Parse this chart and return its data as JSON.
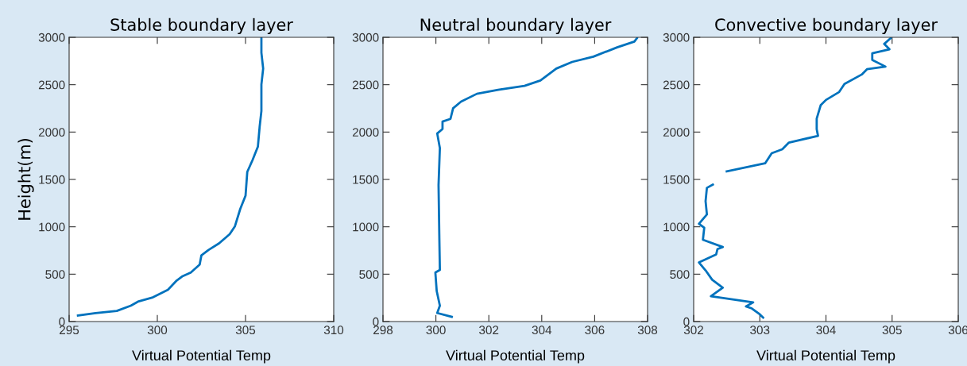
{
  "chart_data": [
    {
      "type": "line",
      "title": "Stable boundary layer",
      "xlabel": "Virtual Potential Temp",
      "ylabel": "Height(m)",
      "xlim": [
        295,
        310
      ],
      "xticks": [
        295,
        300,
        305,
        310
      ],
      "ylim": [
        0,
        3000
      ],
      "yticks": [
        0,
        500,
        1000,
        1500,
        2000,
        2500,
        3000
      ],
      "grid": false,
      "legend": false,
      "series": [
        {
          "color": "#0072bd",
          "x": [
            295.5,
            296.5,
            297.7,
            298.5,
            298.9,
            299.7,
            300.6,
            301.1,
            301.4,
            301.9,
            302.4,
            302.5,
            302.9,
            303.5,
            304.1,
            304.4,
            304.7,
            305.0,
            305.1,
            305.4,
            305.7,
            305.8,
            305.9,
            305.9,
            306.0,
            305.9,
            305.9
          ],
          "values": [
            64,
            90,
            112,
            168,
            210,
            252,
            335,
            433,
            475,
            517,
            601,
            699,
            755,
            825,
            922,
            1006,
            1188,
            1328,
            1580,
            1705,
            1845,
            2055,
            2222,
            2502,
            2670,
            2838,
            2992
          ]
        }
      ]
    },
    {
      "type": "line",
      "title": "Neutral boundary layer",
      "xlabel": "Virtual Potential Temp",
      "xlim": [
        298,
        308
      ],
      "xticks": [
        298,
        300,
        302,
        304,
        306,
        308
      ],
      "ylim": [
        0,
        3000
      ],
      "yticks": [
        0,
        500,
        1000,
        1500,
        2000,
        2500,
        3000
      ],
      "grid": false,
      "legend": false,
      "series": [
        {
          "color": "#0072bd",
          "x": [
            300.6,
            300.05,
            300.15,
            300.03,
            299.98,
            300.15,
            300.13,
            300.1,
            300.15,
            300.05,
            300.25,
            300.25,
            300.55,
            300.65,
            300.95,
            301.55,
            302.35,
            303.35,
            303.95,
            304.55,
            305.15,
            305.95,
            306.85,
            307.5,
            307.6
          ],
          "values": [
            50,
            90,
            168,
            322,
            517,
            545,
            881,
            1440,
            1831,
            1985,
            2032,
            2111,
            2139,
            2251,
            2321,
            2404,
            2446,
            2488,
            2544,
            2670,
            2740,
            2796,
            2894,
            2955,
            2992
          ]
        }
      ]
    },
    {
      "type": "line",
      "title": "Convective boundary layer",
      "xlabel": "Virtual Potential Temp",
      "xlim": [
        302,
        306
      ],
      "xticks": [
        302,
        303,
        304,
        305,
        306
      ],
      "ylim": [
        0,
        3000
      ],
      "yticks": [
        0,
        500,
        1000,
        1500,
        2000,
        2500,
        3000
      ],
      "grid": false,
      "legend": false,
      "series": [
        {
          "color": "#0072bd",
          "x": [
            303.05,
            303.0,
            302.88,
            302.79,
            302.9,
            302.26,
            302.44,
            302.28,
            302.18,
            302.08,
            302.34,
            302.36,
            302.44,
            302.14,
            302.16,
            302.08,
            302.2,
            302.18,
            302.2,
            302.29,
            null,
            302.5,
            303.08,
            303.18,
            303.34,
            303.44,
            303.88,
            303.86,
            303.86,
            303.92,
            304.0,
            304.2,
            304.28,
            304.54,
            304.62,
            304.9,
            304.7,
            304.7,
            304.96,
            304.88,
            304.98
          ],
          "values": [
            42,
            76,
            138,
            160,
            202,
            267,
            357,
            441,
            540,
            624,
            708,
            765,
            787,
            863,
            990,
            1032,
            1130,
            1271,
            1411,
            1445,
            null,
            1586,
            1670,
            1777,
            1819,
            1889,
            1960,
            2030,
            2142,
            2283,
            2339,
            2423,
            2508,
            2607,
            2663,
            2691,
            2762,
            2832,
            2874,
            2930,
            2992
          ]
        }
      ]
    }
  ]
}
